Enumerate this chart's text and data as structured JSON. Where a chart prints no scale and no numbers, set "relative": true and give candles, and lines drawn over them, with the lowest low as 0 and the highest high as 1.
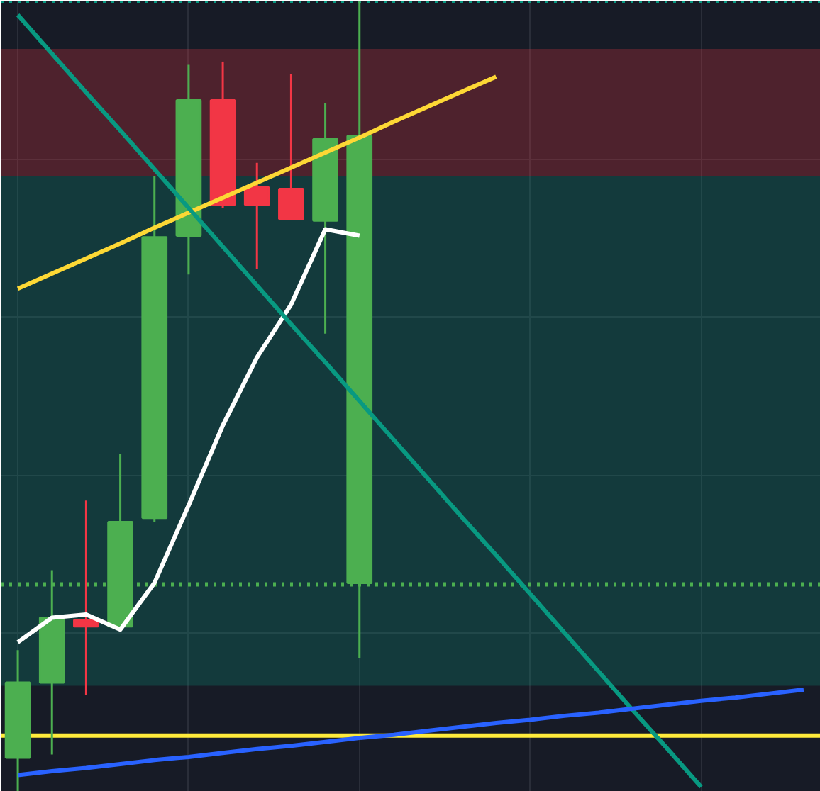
{
  "chart_data": {
    "type": "candlestick",
    "relative": true,
    "grid": true,
    "categories": [
      null,
      null,
      null,
      null,
      null,
      null,
      null,
      null,
      null,
      null,
      null,
      null,
      null,
      null,
      null,
      null,
      null,
      null,
      null,
      null,
      null,
      null,
      null,
      null
    ],
    "ohlc": [
      [
        0.043,
        0.179,
        0.0,
        0.138
      ],
      [
        0.138,
        0.28,
        0.047,
        0.22
      ],
      [
        0.217,
        0.368,
        0.122,
        0.209
      ],
      [
        0.209,
        0.427,
        0.209,
        0.341
      ],
      [
        0.346,
        0.778,
        0.341,
        0.701
      ],
      [
        0.703,
        0.919,
        0.654,
        0.874
      ],
      [
        0.874,
        0.923,
        0.738,
        0.742
      ],
      [
        0.764,
        0.795,
        0.661,
        0.742
      ],
      [
        0.762,
        0.907,
        0.724,
        0.724
      ],
      [
        0.722,
        0.87,
        0.579,
        0.825
      ],
      [
        0.264,
        1.0,
        0.169,
        0.829
      ],
      null,
      null,
      null,
      null,
      null,
      null,
      null,
      null,
      null,
      null,
      null,
      null,
      null
    ],
    "colors": [
      "#4caf50",
      "#4caf50",
      "#f23645",
      "#4caf50",
      "#4caf50",
      "#4caf50",
      "#f23645",
      "#f23645",
      "#f23645",
      "#4caf50",
      "#4caf50",
      null,
      null,
      null,
      null,
      null,
      null,
      null,
      null,
      null,
      null,
      null,
      null,
      null
    ],
    "series": [
      {
        "type": "line",
        "color": "#ffffff",
        "values": [
          0.189,
          0.22,
          0.224,
          0.205,
          0.264,
          0.362,
          0.463,
          0.549,
          0.616,
          0.711,
          0.703,
          null,
          null,
          null,
          null,
          null,
          null,
          null,
          null,
          null,
          null,
          null,
          null,
          null
        ]
      },
      {
        "type": "line",
        "color": "#fdd835",
        "values": [
          0.636,
          0.655,
          0.674,
          0.693,
          0.713,
          0.732,
          0.751,
          0.77,
          0.789,
          0.808,
          0.827,
          0.847,
          0.866,
          0.885,
          0.904,
          null,
          null,
          null,
          null,
          null,
          null,
          null,
          null,
          null
        ]
      },
      {
        "type": "line",
        "color": "#089981",
        "values": [
          0.982,
          0.933,
          0.884,
          0.836,
          0.787,
          0.738,
          0.689,
          0.64,
          0.591,
          0.543,
          0.494,
          0.445,
          0.396,
          0.347,
          0.299,
          0.25,
          0.201,
          0.152,
          0.103,
          0.055,
          0.006,
          null,
          null,
          null
        ]
      },
      {
        "type": "line",
        "color": "#2962ff",
        "values": [
          0.021,
          0.026,
          0.03,
          0.035,
          0.04,
          0.044,
          0.049,
          0.054,
          0.058,
          0.063,
          0.068,
          0.072,
          0.077,
          0.082,
          0.087,
          0.091,
          0.096,
          0.1,
          0.105,
          0.11,
          0.115,
          0.119,
          0.124,
          0.129
        ]
      }
    ],
    "ref_lines": [
      {
        "axis": "y",
        "value": 0.071,
        "color": "#ffeb3b",
        "line_style": "solid"
      },
      {
        "axis": "y",
        "value": 0.262,
        "color": "#4caf50",
        "line_style": "dotted"
      },
      {
        "axis": "y",
        "value": 1.0,
        "color": "#089981",
        "line_style": "dotted"
      }
    ],
    "bands": [
      {
        "axis": "y",
        "from": 0.778,
        "to": 0.939,
        "color": "#f23645"
      },
      {
        "axis": "y",
        "from": 0.134,
        "to": 0.778,
        "color": "#089981"
      }
    ]
  }
}
